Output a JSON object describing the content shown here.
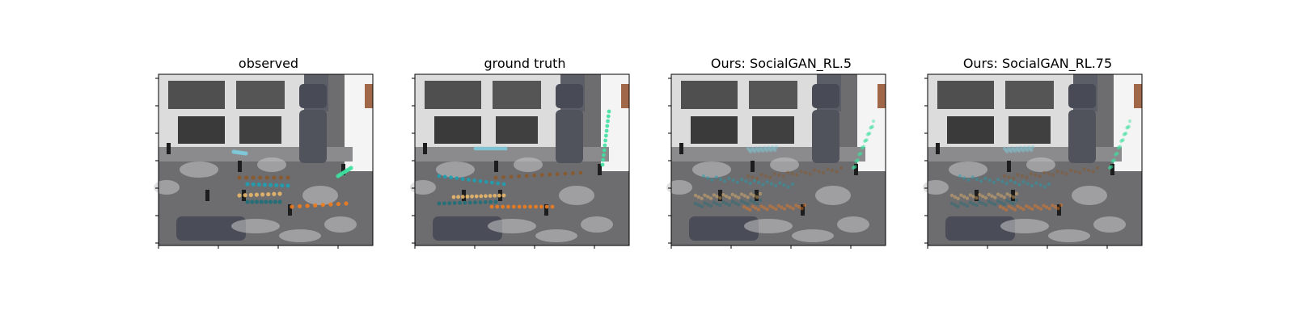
{
  "panels": [
    {
      "title": "observed",
      "mode": "observed"
    },
    {
      "title": "ground truth",
      "mode": "truth"
    },
    {
      "title": "Ours: SocialGAN_RL.5",
      "mode": "predicted"
    },
    {
      "title": "Ours: SocialGAN_RL.75",
      "mode": "predicted"
    }
  ],
  "trajectory_colors": {
    "brown": "#8a5a2b",
    "teal": "#1ea0b0",
    "tan": "#e8b86a",
    "dark_teal": "#1f6f78",
    "orange": "#f07d1e",
    "mint": "#3ee0a0",
    "light_blue": "#7ec8d8"
  }
}
